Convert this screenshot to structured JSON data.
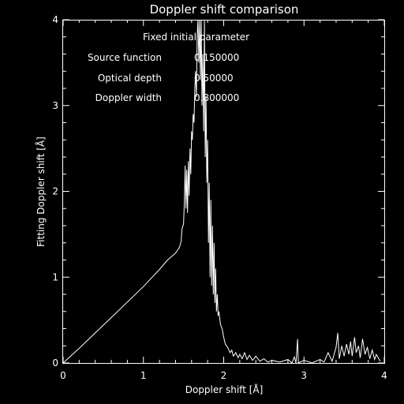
{
  "chart_data": {
    "type": "line",
    "title": "Doppler shift comparison",
    "xlabel": "Doppler shift [Å]",
    "ylabel": "Fitting Doppler shift [Å]",
    "xlim": [
      0,
      4
    ],
    "ylim": [
      0,
      4
    ],
    "x_ticks": [
      "0",
      "1",
      "2",
      "3",
      "4"
    ],
    "y_ticks": [
      "0",
      "1",
      "2",
      "3",
      "4"
    ],
    "grid": false,
    "colors": {
      "background": "#000000",
      "foreground": "#ffffff"
    },
    "annotations": {
      "heading": "Fixed initial parameter",
      "rows": [
        {
          "label": "Source function",
          "value": "0.150000"
        },
        {
          "label": "Optical depth",
          "value": "0.50000"
        },
        {
          "label": "Doppler width",
          "value": "0.800000"
        }
      ]
    },
    "series": [
      {
        "points": [
          [
            0.0,
            0.0
          ],
          [
            0.2,
            0.17
          ],
          [
            0.4,
            0.35
          ],
          [
            0.6,
            0.53
          ],
          [
            0.8,
            0.71
          ],
          [
            1.0,
            0.89
          ],
          [
            1.1,
            0.99
          ],
          [
            1.2,
            1.09
          ],
          [
            1.3,
            1.2
          ],
          [
            1.35,
            1.24
          ],
          [
            1.4,
            1.28
          ],
          [
            1.43,
            1.32
          ],
          [
            1.45,
            1.35
          ],
          [
            1.47,
            1.42
          ],
          [
            1.48,
            1.56
          ],
          [
            1.5,
            1.62
          ],
          [
            1.51,
            1.86
          ],
          [
            1.52,
            2.3
          ],
          [
            1.53,
            1.8
          ],
          [
            1.54,
            2.25
          ],
          [
            1.55,
            1.75
          ],
          [
            1.56,
            2.35
          ],
          [
            1.57,
            1.95
          ],
          [
            1.58,
            2.5
          ],
          [
            1.59,
            2.2
          ],
          [
            1.6,
            2.7
          ],
          [
            1.61,
            2.6
          ],
          [
            1.62,
            2.9
          ],
          [
            1.63,
            2.8
          ],
          [
            1.64,
            3.2
          ],
          [
            1.65,
            3.4
          ],
          [
            1.66,
            3.1
          ],
          [
            1.67,
            3.8
          ],
          [
            1.68,
            4.0
          ],
          [
            1.69,
            3.5
          ],
          [
            1.7,
            4.0
          ],
          [
            1.71,
            3.3
          ],
          [
            1.72,
            4.0
          ],
          [
            1.73,
            3.0
          ],
          [
            1.74,
            3.6
          ],
          [
            1.75,
            2.7
          ],
          [
            1.76,
            4.0
          ],
          [
            1.77,
            2.4
          ],
          [
            1.78,
            3.1
          ],
          [
            1.79,
            2.1
          ],
          [
            1.8,
            2.6
          ],
          [
            1.81,
            1.4
          ],
          [
            1.82,
            2.1
          ],
          [
            1.83,
            1.0
          ],
          [
            1.84,
            1.9
          ],
          [
            1.85,
            0.9
          ],
          [
            1.86,
            1.6
          ],
          [
            1.87,
            0.8
          ],
          [
            1.88,
            1.4
          ],
          [
            1.89,
            0.7
          ],
          [
            1.9,
            1.1
          ],
          [
            1.91,
            0.6
          ],
          [
            1.92,
            0.8
          ],
          [
            1.93,
            0.55
          ],
          [
            1.94,
            0.6
          ],
          [
            1.96,
            0.45
          ],
          [
            1.98,
            0.4
          ],
          [
            2.0,
            0.3
          ],
          [
            2.02,
            0.22
          ],
          [
            2.05,
            0.18
          ],
          [
            2.08,
            0.12
          ],
          [
            2.1,
            0.15
          ],
          [
            2.12,
            0.08
          ],
          [
            2.15,
            0.12
          ],
          [
            2.18,
            0.06
          ],
          [
            2.2,
            0.1
          ],
          [
            2.23,
            0.05
          ],
          [
            2.26,
            0.12
          ],
          [
            2.29,
            0.04
          ],
          [
            2.32,
            0.09
          ],
          [
            2.36,
            0.03
          ],
          [
            2.4,
            0.08
          ],
          [
            2.45,
            0.02
          ],
          [
            2.5,
            0.05
          ],
          [
            2.55,
            0.01
          ],
          [
            2.6,
            0.03
          ],
          [
            2.7,
            0.01
          ],
          [
            2.8,
            0.04
          ],
          [
            2.85,
            0.0
          ],
          [
            2.88,
            0.07
          ],
          [
            2.9,
            0.0
          ],
          [
            2.92,
            0.28
          ],
          [
            2.93,
            0.0
          ],
          [
            3.0,
            0.03
          ],
          [
            3.1,
            0.0
          ],
          [
            3.2,
            0.04
          ],
          [
            3.25,
            0.01
          ],
          [
            3.3,
            0.12
          ],
          [
            3.35,
            0.02
          ],
          [
            3.4,
            0.18
          ],
          [
            3.42,
            0.35
          ],
          [
            3.44,
            0.05
          ],
          [
            3.47,
            0.2
          ],
          [
            3.5,
            0.08
          ],
          [
            3.53,
            0.22
          ],
          [
            3.56,
            0.1
          ],
          [
            3.58,
            0.25
          ],
          [
            3.6,
            0.08
          ],
          [
            3.63,
            0.3
          ],
          [
            3.65,
            0.12
          ],
          [
            3.68,
            0.2
          ],
          [
            3.7,
            0.06
          ],
          [
            3.73,
            0.28
          ],
          [
            3.76,
            0.1
          ],
          [
            3.79,
            0.18
          ],
          [
            3.82,
            0.05
          ],
          [
            3.85,
            0.15
          ],
          [
            3.88,
            0.04
          ],
          [
            3.9,
            0.1
          ],
          [
            3.95,
            0.02
          ]
        ]
      }
    ]
  }
}
